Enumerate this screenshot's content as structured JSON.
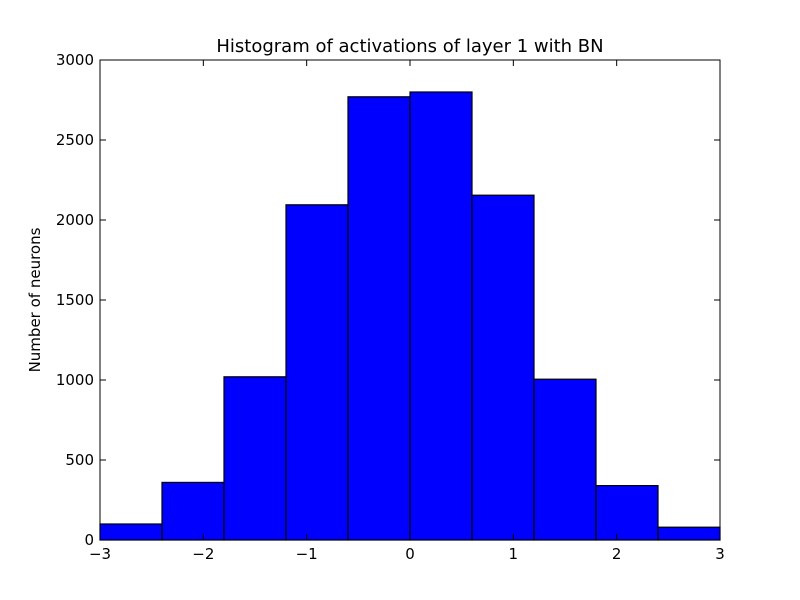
{
  "chart_data": {
    "type": "bar",
    "title": "Histogram of activations of layer 1  with BN",
    "xlabel": "",
    "ylabel": "Number of neurons",
    "xlim": [
      -3,
      3
    ],
    "ylim": [
      0,
      3000
    ],
    "bin_edges": [
      -3.0,
      -2.4,
      -1.8,
      -1.2,
      -0.6,
      0.0,
      0.6,
      1.2,
      1.8,
      2.4,
      3.0
    ],
    "values": [
      100,
      360,
      1020,
      2095,
      2770,
      2800,
      2155,
      1005,
      340,
      80
    ],
    "x_ticks": [
      -3,
      -2,
      -1,
      0,
      1,
      2,
      3
    ],
    "x_tick_labels": [
      "−3",
      "−2",
      "−1",
      "0",
      "1",
      "2",
      "3"
    ],
    "y_ticks": [
      0,
      500,
      1000,
      1500,
      2000,
      2500,
      3000
    ],
    "y_tick_labels": [
      "0",
      "500",
      "1000",
      "1500",
      "2000",
      "2500",
      "3000"
    ],
    "grid": false,
    "legend": "none",
    "bar_color": "#0000ff",
    "edge_color": "#000000"
  }
}
